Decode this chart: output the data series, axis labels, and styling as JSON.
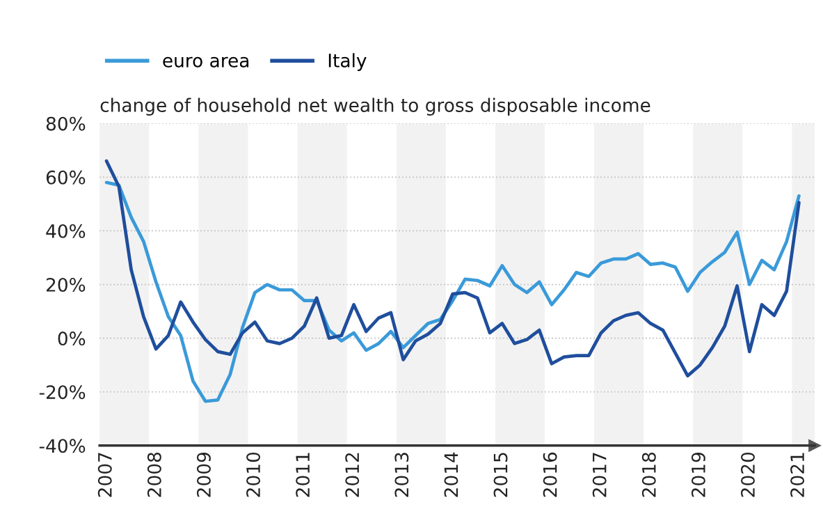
{
  "chart_data": {
    "type": "line",
    "title": "change of household net wealth to gross disposable income",
    "x": [
      2007,
      2007.25,
      2007.5,
      2007.75,
      2008,
      2008.25,
      2008.5,
      2008.75,
      2009,
      2009.25,
      2009.5,
      2009.75,
      2010,
      2010.25,
      2010.5,
      2010.75,
      2011,
      2011.25,
      2011.5,
      2011.75,
      2012,
      2012.25,
      2012.5,
      2012.75,
      2013,
      2013.25,
      2013.5,
      2013.75,
      2014,
      2014.25,
      2014.5,
      2014.75,
      2015,
      2015.25,
      2015.5,
      2015.75,
      2016,
      2016.25,
      2016.5,
      2016.75,
      2017,
      2017.25,
      2017.5,
      2017.75,
      2018,
      2018.25,
      2018.5,
      2018.75,
      2019,
      2019.25,
      2019.5,
      2019.75,
      2020,
      2020.25,
      2020.5,
      2020.75,
      2021
    ],
    "series": [
      {
        "name": "euro area",
        "color": "#3a9ad9",
        "values": [
          58,
          57,
          45,
          36,
          21,
          8,
          1,
          -16,
          -23.5,
          -23,
          -13.5,
          4,
          17,
          20,
          18,
          18,
          14,
          14,
          3,
          -1,
          2,
          -4.5,
          -2,
          2.5,
          -3.5,
          1,
          5.5,
          7,
          14,
          22,
          21.5,
          19.5,
          27,
          20,
          17,
          21,
          12.5,
          18,
          24.5,
          23,
          28,
          29.5,
          29.5,
          31.5,
          27.5,
          28,
          26.5,
          17.5,
          24.5,
          28.5,
          32,
          39.5,
          20,
          29,
          25.5,
          36,
          53
        ]
      },
      {
        "name": "Italy",
        "color": "#1f4e9c",
        "values": [
          66,
          56.5,
          25.5,
          8,
          -4,
          1,
          13.5,
          6,
          -0.5,
          -5,
          -6,
          2,
          6,
          -1,
          -2,
          0,
          4.5,
          15,
          0,
          1,
          12.5,
          2.5,
          7.5,
          9.5,
          -8,
          -1,
          1.5,
          5.5,
          16.5,
          17,
          15,
          2,
          5.5,
          -2,
          -0.5,
          3,
          -9.5,
          -7,
          -6.5,
          -6.5,
          2,
          6.5,
          8.5,
          9.5,
          5.5,
          3,
          -5.5,
          -14,
          -10,
          -3.5,
          4.5,
          19.5,
          -5,
          12.5,
          8.5,
          17.5,
          50.5
        ]
      }
    ],
    "ylim": [
      -40,
      80
    ],
    "yticks": [
      {
        "value": -40,
        "label": "-40%"
      },
      {
        "value": -20,
        "label": "-20%"
      },
      {
        "value": 0,
        "label": "0%"
      },
      {
        "value": 20,
        "label": "20%"
      },
      {
        "value": 40,
        "label": "40%"
      },
      {
        "value": 60,
        "label": "60%"
      },
      {
        "value": 80,
        "label": "80%"
      }
    ],
    "xlim": [
      2006.86,
      2021.32
    ],
    "xticks": [
      2007,
      2008,
      2009,
      2010,
      2011,
      2012,
      2013,
      2014,
      2015,
      2016,
      2017,
      2018,
      2019,
      2020,
      2021
    ],
    "bands": [
      {
        "axis": "x",
        "from": 2006.86,
        "to": 2007.86,
        "color": "#f2f2f2"
      },
      {
        "axis": "x",
        "from": 2008.86,
        "to": 2009.86,
        "color": "#f2f2f2"
      },
      {
        "axis": "x",
        "from": 2010.86,
        "to": 2011.86,
        "color": "#f2f2f2"
      },
      {
        "axis": "x",
        "from": 2012.86,
        "to": 2013.86,
        "color": "#f2f2f2"
      },
      {
        "axis": "x",
        "from": 2014.86,
        "to": 2015.86,
        "color": "#f2f2f2"
      },
      {
        "axis": "x",
        "from": 2016.86,
        "to": 2017.86,
        "color": "#f2f2f2"
      },
      {
        "axis": "x",
        "from": 2018.86,
        "to": 2019.86,
        "color": "#f2f2f2"
      },
      {
        "axis": "x",
        "from": 2020.86,
        "to": 2021.32,
        "color": "#f2f2f2"
      }
    ],
    "grid": "y",
    "legend": "top left",
    "marker": "none",
    "line_style": "solid"
  }
}
